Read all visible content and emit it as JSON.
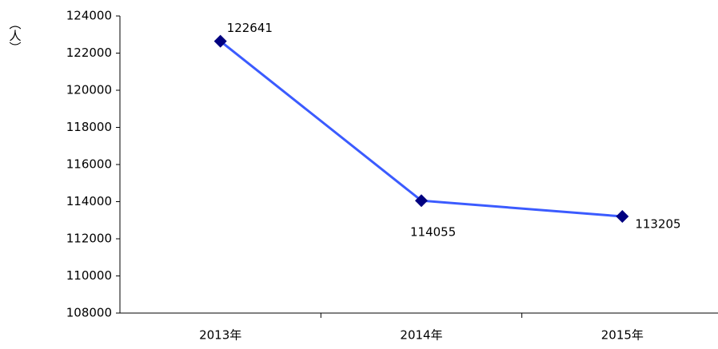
{
  "chart_data": {
    "type": "line",
    "y_label": "（人）",
    "categories": [
      "2013年",
      "2014年",
      "2015年"
    ],
    "values": [
      122641,
      114055,
      113205
    ],
    "color": "#3b5bff",
    "marker_color": "#000080",
    "ylim": [
      108000,
      124000
    ],
    "yticks": [
      108000,
      110000,
      112000,
      114000,
      116000,
      118000,
      120000,
      122000,
      124000
    ],
    "grid": false
  }
}
